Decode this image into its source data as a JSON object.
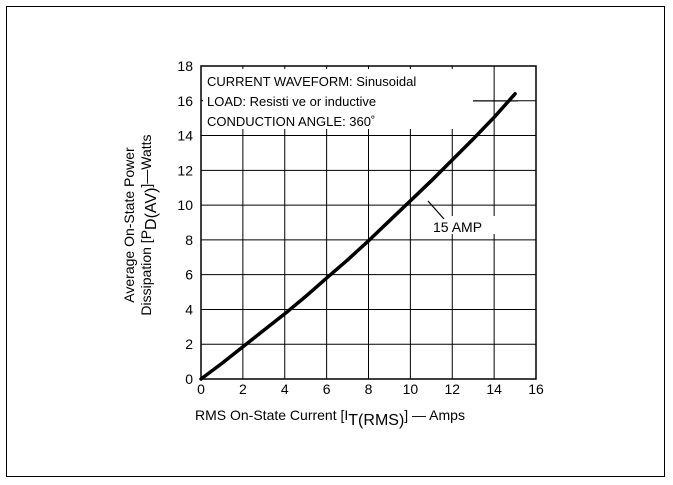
{
  "chart_data": {
    "type": "line",
    "xlabel_main": "RMS On-State Current [I",
    "xlabel_sub": "T(RMS)",
    "xlabel_tail": "] — Amps",
    "ylabel_line1": "Average On-State Power",
    "ylabel_line2_main": "Dissipation [P",
    "ylabel_line2_sub": "D(AV)",
    "ylabel_line2_tail": "]—Watts",
    "xlim": [
      0,
      16
    ],
    "ylim": [
      0,
      18
    ],
    "x_ticks": [
      "0",
      "2",
      "4",
      "6",
      "8",
      "10",
      "12",
      "14",
      "16"
    ],
    "y_ticks": [
      "0",
      "2",
      "4",
      "6",
      "8",
      "10",
      "12",
      "14",
      "16",
      "18"
    ],
    "grid": true,
    "annotations": {
      "line1": "CURRENT WAVEFORM: Sinusoidal",
      "line2": "LOAD: Resisti ve or inductive",
      "line3": "CONDUCTION ANGLE: 360˚"
    },
    "series": [
      {
        "name": "15 AMP",
        "x": [
          0,
          1,
          2,
          3,
          4,
          5,
          6,
          7,
          8,
          9,
          10,
          11,
          12,
          13,
          14,
          15
        ],
        "y": [
          0,
          0.9,
          1.85,
          2.8,
          3.75,
          4.75,
          5.8,
          6.85,
          7.95,
          9.1,
          10.25,
          11.4,
          12.6,
          13.8,
          15.05,
          16.4
        ]
      }
    ],
    "colors": {
      "line": "#000000",
      "grid": "#000000"
    }
  }
}
